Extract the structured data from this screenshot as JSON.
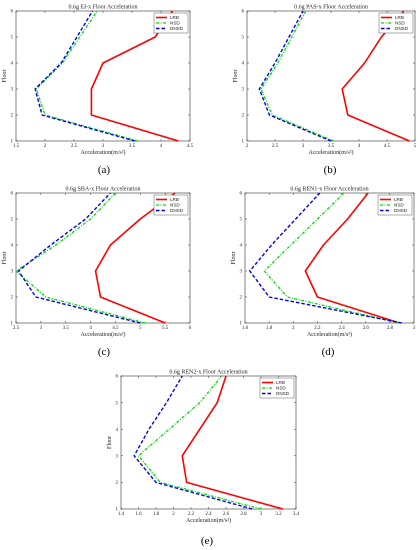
{
  "figure_captions": [
    "(a)",
    "(b)",
    "(c)",
    "(d)",
    "(e)"
  ],
  "colors": {
    "LRB": "#ff0000",
    "NSD": "#00dd00",
    "DNSD": "#0000ee"
  },
  "chart_data": [
    {
      "type": "line",
      "title": "0.6g EI-x Floor Acceleration",
      "xlabel": "Acceleration(m/s²)",
      "ylabel": "Floor",
      "xlim": [
        1.5,
        4.5
      ],
      "ylim": [
        1,
        6
      ],
      "xticks": [
        "1.5",
        "2",
        "2.5",
        "3",
        "3.5",
        "4",
        "4.5"
      ],
      "yticks": [
        "1",
        "2",
        "3",
        "4",
        "5",
        "6"
      ],
      "legend": {
        "position": "top-right",
        "entries": [
          "LRB",
          "NSD",
          "DNSD"
        ]
      },
      "y": [
        1,
        2,
        3,
        4,
        5,
        6
      ],
      "series": [
        {
          "name": "LRB",
          "values": [
            4.3,
            2.8,
            2.8,
            3.0,
            3.9,
            4.2
          ]
        },
        {
          "name": "NSD",
          "values": [
            3.6,
            2.0,
            1.85,
            2.3,
            2.6,
            2.9
          ]
        },
        {
          "name": "DNSD",
          "values": [
            3.55,
            1.95,
            1.83,
            2.28,
            2.55,
            2.82
          ]
        }
      ]
    },
    {
      "type": "line",
      "title": "0.6g PAS-x Floor Acceleration",
      "xlabel": "Acceleration(m/s²)",
      "ylabel": "Floor",
      "xlim": [
        2,
        5
      ],
      "ylim": [
        1,
        6
      ],
      "xticks": [
        "2",
        "2.5",
        "3",
        "3.5",
        "4",
        "4.5",
        "5"
      ],
      "yticks": [
        "1",
        "2",
        "3",
        "4",
        "5",
        "6"
      ],
      "legend": {
        "position": "top-right",
        "entries": [
          "LRB",
          "NSD",
          "DNSD"
        ]
      },
      "y": [
        1,
        2,
        3,
        4,
        5,
        6
      ],
      "series": [
        {
          "name": "LRB",
          "values": [
            4.9,
            3.8,
            3.7,
            4.1,
            4.4,
            4.8
          ]
        },
        {
          "name": "NSD",
          "values": [
            3.55,
            2.45,
            2.25,
            2.55,
            2.8,
            3.05
          ]
        },
        {
          "name": "DNSD",
          "values": [
            3.5,
            2.4,
            2.22,
            2.5,
            2.75,
            3.0
          ]
        }
      ]
    },
    {
      "type": "line",
      "title": "0.6g SBA-x Floor Acceleration",
      "xlabel": "Acceleration(m/s²)",
      "ylabel": "Floor",
      "xlim": [
        2.5,
        6
      ],
      "ylim": [
        1,
        6
      ],
      "xticks": [
        "2.5",
        "3",
        "3.5",
        "4",
        "4.5",
        "5",
        "5.5",
        "6"
      ],
      "yticks": [
        "1",
        "2",
        "3",
        "4",
        "5",
        "6"
      ],
      "legend": {
        "position": "top-right",
        "entries": [
          "LRB",
          "NSD",
          "DNSD"
        ]
      },
      "y": [
        1,
        2,
        3,
        4,
        5,
        6
      ],
      "series": [
        {
          "name": "LRB",
          "values": [
            5.5,
            4.2,
            4.1,
            4.4,
            5.0,
            5.7
          ]
        },
        {
          "name": "NSD",
          "values": [
            5.1,
            3.1,
            2.5,
            3.3,
            4.0,
            4.5
          ]
        },
        {
          "name": "DNSD",
          "values": [
            5.0,
            2.9,
            2.55,
            3.2,
            3.9,
            4.4
          ]
        }
      ]
    },
    {
      "type": "line",
      "title": "0.6g REN1-x Floor Acceleration",
      "xlabel": "Acceleration(m/s²)",
      "ylabel": "Floor",
      "xlim": [
        1.6,
        3
      ],
      "ylim": [
        1,
        6
      ],
      "xticks": [
        "1.6",
        "1.8",
        "2",
        "2.2",
        "2.4",
        "2.6",
        "2.8",
        "3"
      ],
      "yticks": [
        "1",
        "2",
        "3",
        "4",
        "5",
        "6"
      ],
      "legend": {
        "position": "top-right",
        "entries": [
          "LRB",
          "NSD",
          "DNSD"
        ]
      },
      "y": [
        1,
        2,
        3,
        4,
        5,
        6
      ],
      "series": [
        {
          "name": "LRB",
          "values": [
            2.88,
            2.2,
            2.1,
            2.25,
            2.45,
            2.62
          ]
        },
        {
          "name": "NSD",
          "values": [
            2.88,
            1.95,
            1.76,
            1.98,
            2.2,
            2.42
          ]
        },
        {
          "name": "DNSD",
          "values": [
            2.9,
            1.8,
            1.64,
            1.82,
            2.02,
            2.22
          ]
        }
      ]
    },
    {
      "type": "line",
      "title": "0.6g REN2-x Floor Acceleration",
      "xlabel": "Acceleration(m/s²)",
      "ylabel": "Floor",
      "xlim": [
        1.4,
        3.4
      ],
      "ylim": [
        1,
        6
      ],
      "xticks": [
        "1.4",
        "1.6",
        "1.8",
        "2",
        "2.2",
        "2.4",
        "2.6",
        "2.8",
        "3",
        "3.2",
        "3.4"
      ],
      "yticks": [
        "1",
        "2",
        "3",
        "4",
        "5",
        "6"
      ],
      "legend": {
        "position": "top-right",
        "entries": [
          "LRB",
          "NSD",
          "DNSD"
        ]
      },
      "y": [
        1,
        2,
        3,
        4,
        5,
        6
      ],
      "series": [
        {
          "name": "LRB",
          "values": [
            3.25,
            2.15,
            2.1,
            2.3,
            2.5,
            2.6
          ]
        },
        {
          "name": "NSD",
          "values": [
            3.0,
            1.85,
            1.6,
            1.95,
            2.3,
            2.55
          ]
        },
        {
          "name": "DNSD",
          "values": [
            2.9,
            1.8,
            1.55,
            1.72,
            1.92,
            2.1
          ]
        }
      ]
    }
  ]
}
